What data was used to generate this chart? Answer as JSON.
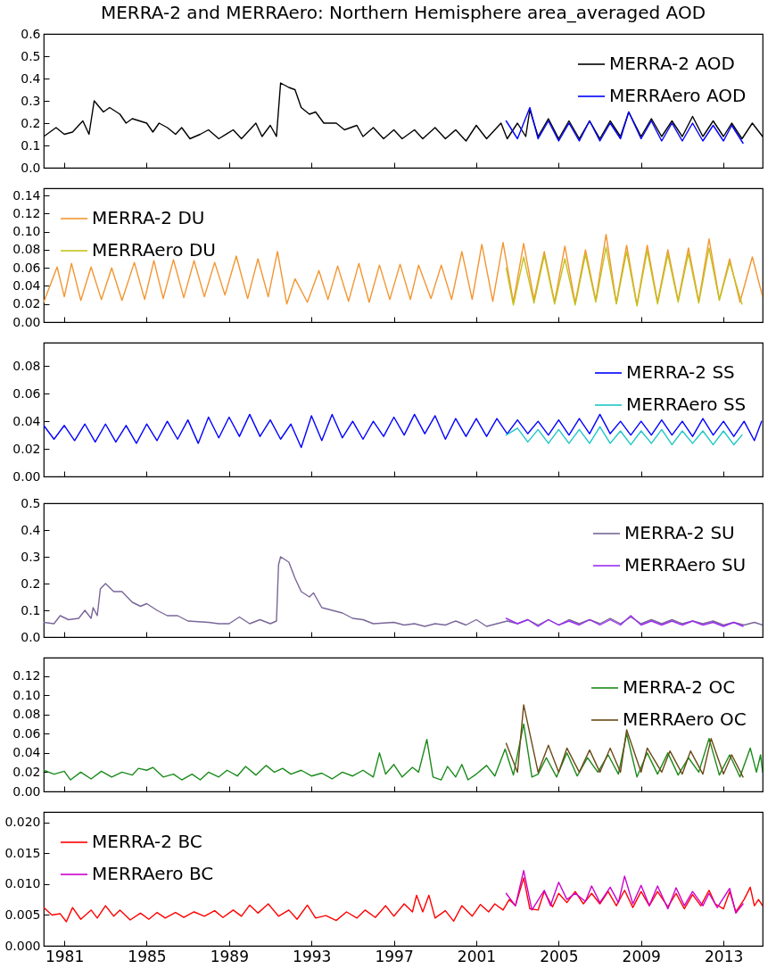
{
  "chart_data": [
    {
      "type": "line",
      "title": "MERRA-2 and MERRAero: Northern Hemisphere area_averaged AOD",
      "xlim": [
        1980,
        2014.9
      ],
      "xticks": [
        1981,
        1985,
        1989,
        1993,
        1997,
        2001,
        2005,
        2009,
        2013
      ],
      "ylim": [
        0,
        0.6
      ],
      "yticks": [
        {
          "value": 0,
          "label": "0.0"
        },
        0.1,
        0.2,
        0.3,
        0.4,
        0.5,
        0.6
      ],
      "tick_labels": "y",
      "legend": "top right",
      "series": [
        {
          "name": "MERRA-2 AOD",
          "color": "#000000",
          "x": [
            1980.0,
            1980.6,
            1981.0,
            1981.4,
            1981.9,
            1982.2,
            1982.45,
            1982.9,
            1983.2,
            1983.7,
            1984.0,
            1984.3,
            1985.0,
            1985.3,
            1985.6,
            1986.0,
            1986.4,
            1986.7,
            1987.1,
            1987.6,
            1988.0,
            1988.5,
            1989.2,
            1989.6,
            1990.3,
            1990.6,
            1991.0,
            1991.3,
            1991.5,
            1991.9,
            1992.2,
            1992.5,
            1992.9,
            1993.2,
            1993.6,
            1994.2,
            1994.6,
            1995.2,
            1995.5,
            1996.0,
            1996.5,
            1997.0,
            1997.4,
            1998.0,
            1998.4,
            1999.0,
            1999.5,
            2000.0,
            2000.5,
            2001.0,
            2001.5,
            2002.2,
            2002.5,
            2003.0,
            2003.4,
            2003.6,
            2004.0,
            2004.5,
            2005.0,
            2005.5,
            2006.0,
            2006.5,
            2007.0,
            2007.5,
            2008.0,
            2008.4,
            2009.0,
            2009.5,
            2010.0,
            2010.5,
            2011.0,
            2011.5,
            2012.0,
            2012.5,
            2013.0,
            2013.4,
            2013.9,
            2014.4,
            2014.9
          ],
          "values": [
            0.14,
            0.18,
            0.15,
            0.16,
            0.21,
            0.15,
            0.3,
            0.25,
            0.27,
            0.24,
            0.2,
            0.22,
            0.2,
            0.16,
            0.2,
            0.18,
            0.15,
            0.18,
            0.13,
            0.15,
            0.17,
            0.13,
            0.17,
            0.13,
            0.2,
            0.14,
            0.19,
            0.14,
            0.38,
            0.36,
            0.35,
            0.27,
            0.24,
            0.25,
            0.2,
            0.2,
            0.17,
            0.19,
            0.14,
            0.18,
            0.13,
            0.17,
            0.13,
            0.17,
            0.13,
            0.18,
            0.13,
            0.17,
            0.12,
            0.19,
            0.13,
            0.2,
            0.13,
            0.2,
            0.14,
            0.26,
            0.14,
            0.22,
            0.13,
            0.21,
            0.13,
            0.21,
            0.13,
            0.21,
            0.14,
            0.25,
            0.14,
            0.22,
            0.14,
            0.21,
            0.14,
            0.23,
            0.14,
            0.21,
            0.14,
            0.2,
            0.13,
            0.2,
            0.14
          ]
        },
        {
          "name": "MERRAero AOD",
          "color": "#0000ff",
          "x": [
            2002.45,
            2003.0,
            2003.6,
            2004.0,
            2004.5,
            2005.0,
            2005.5,
            2006.0,
            2006.5,
            2007.0,
            2007.5,
            2008.0,
            2008.4,
            2009.0,
            2009.5,
            2010.0,
            2010.5,
            2011.0,
            2011.5,
            2012.0,
            2012.5,
            2013.0,
            2013.4,
            2013.95
          ],
          "values": [
            0.21,
            0.13,
            0.27,
            0.13,
            0.21,
            0.12,
            0.2,
            0.12,
            0.21,
            0.12,
            0.2,
            0.13,
            0.25,
            0.13,
            0.21,
            0.12,
            0.2,
            0.12,
            0.2,
            0.12,
            0.19,
            0.12,
            0.19,
            0.11
          ]
        }
      ]
    },
    {
      "type": "line",
      "xlim": [
        1980,
        2014.9
      ],
      "xticks": [
        1981,
        1985,
        1989,
        1993,
        1997,
        2001,
        2005,
        2009,
        2013
      ],
      "ylim": [
        0,
        0.148
      ],
      "yticks": [
        {
          "value": 0,
          "label": "0.00"
        },
        0.02,
        0.04,
        0.06,
        0.08,
        {
          "value": 0.1,
          "label": "0.10"
        },
        0.12,
        0.14
      ],
      "tick_labels": "y",
      "legend": "top left",
      "series": [
        {
          "name": "MERRA-2 DU",
          "color": "#f39530",
          "x": [
            1980.0,
            1980.65,
            1981.0,
            1981.35,
            1981.8,
            1982.3,
            1982.8,
            1983.3,
            1983.8,
            1984.4,
            1984.9,
            1985.35,
            1985.8,
            1986.3,
            1986.8,
            1987.3,
            1987.8,
            1988.3,
            1988.8,
            1989.35,
            1989.9,
            1990.4,
            1990.9,
            1991.35,
            1991.8,
            1992.2,
            1992.8,
            1993.36,
            1993.8,
            1994.27,
            1994.8,
            1995.3,
            1995.8,
            1996.3,
            1996.8,
            1997.3,
            1997.8,
            1998.2,
            1998.8,
            1999.3,
            1999.8,
            2000.3,
            2000.8,
            2001.27,
            2001.8,
            2002.3,
            2002.8,
            2003.3,
            2003.8,
            2004.3,
            2004.8,
            2005.3,
            2005.8,
            2006.3,
            2006.8,
            2007.3,
            2007.8,
            2008.3,
            2008.8,
            2009.3,
            2009.8,
            2010.3,
            2010.8,
            2011.3,
            2011.8,
            2012.3,
            2012.8,
            2013.3,
            2013.8,
            2014.4,
            2014.9
          ],
          "values": [
            0.022,
            0.061,
            0.028,
            0.065,
            0.024,
            0.061,
            0.025,
            0.06,
            0.024,
            0.066,
            0.025,
            0.068,
            0.026,
            0.069,
            0.027,
            0.068,
            0.028,
            0.066,
            0.03,
            0.073,
            0.026,
            0.07,
            0.028,
            0.078,
            0.02,
            0.048,
            0.022,
            0.057,
            0.025,
            0.062,
            0.023,
            0.065,
            0.022,
            0.063,
            0.025,
            0.064,
            0.025,
            0.063,
            0.026,
            0.063,
            0.025,
            0.078,
            0.025,
            0.086,
            0.023,
            0.088,
            0.022,
            0.087,
            0.025,
            0.078,
            0.022,
            0.084,
            0.021,
            0.08,
            0.024,
            0.097,
            0.021,
            0.085,
            0.019,
            0.085,
            0.022,
            0.08,
            0.024,
            0.082,
            0.023,
            0.092,
            0.025,
            0.07,
            0.022,
            0.072,
            0.028
          ]
        },
        {
          "name": "MERRAero DU",
          "color": "#c2c21e",
          "x": [
            2002.45,
            2002.8,
            2003.3,
            2003.8,
            2004.3,
            2004.8,
            2005.3,
            2005.8,
            2006.3,
            2006.8,
            2007.3,
            2007.8,
            2008.3,
            2008.8,
            2009.3,
            2009.8,
            2010.3,
            2010.8,
            2011.3,
            2011.8,
            2012.3,
            2012.8,
            2013.3,
            2013.9
          ],
          "values": [
            0.06,
            0.019,
            0.072,
            0.021,
            0.074,
            0.02,
            0.07,
            0.019,
            0.075,
            0.022,
            0.083,
            0.02,
            0.078,
            0.018,
            0.079,
            0.02,
            0.075,
            0.022,
            0.076,
            0.021,
            0.082,
            0.024,
            0.066,
            0.02
          ]
        }
      ]
    },
    {
      "type": "line",
      "xlim": [
        1980,
        2014.9
      ],
      "xticks": [
        1981,
        1985,
        1989,
        1993,
        1997,
        2001,
        2005,
        2009,
        2013
      ],
      "ylim": [
        0,
        0.097
      ],
      "yticks": [
        {
          "value": 0,
          "label": "0.00"
        },
        0.02,
        0.04,
        0.06,
        0.08
      ],
      "tick_labels": "y",
      "legend": "top right",
      "series": [
        {
          "name": "MERRA-2 SS",
          "color": "#0000ff",
          "x": [
            1980.0,
            1980.5,
            1981.0,
            1981.5,
            1982.0,
            1982.5,
            1983.0,
            1983.5,
            1984.0,
            1984.5,
            1985.0,
            1985.5,
            1986.0,
            1986.5,
            1987.0,
            1987.5,
            1988.0,
            1988.5,
            1989.0,
            1989.5,
            1990.0,
            1990.5,
            1991.0,
            1991.5,
            1992.0,
            1992.5,
            1993.0,
            1993.5,
            1994.0,
            1994.5,
            1995.0,
            1995.5,
            1996.0,
            1996.5,
            1997.0,
            1997.5,
            1998.0,
            1998.5,
            1999.0,
            1999.5,
            2000.0,
            2000.5,
            2001.0,
            2001.5,
            2002.0,
            2002.5,
            2003.0,
            2003.5,
            2004.0,
            2004.5,
            2005.0,
            2005.5,
            2006.0,
            2006.5,
            2007.0,
            2007.5,
            2008.0,
            2008.5,
            2009.0,
            2009.5,
            2010.0,
            2010.5,
            2011.0,
            2011.5,
            2012.0,
            2012.5,
            2013.0,
            2013.5,
            2014.0,
            2014.5,
            2014.85
          ],
          "values": [
            0.037,
            0.027,
            0.037,
            0.026,
            0.038,
            0.025,
            0.038,
            0.025,
            0.037,
            0.024,
            0.038,
            0.026,
            0.04,
            0.027,
            0.041,
            0.024,
            0.043,
            0.028,
            0.043,
            0.029,
            0.045,
            0.029,
            0.041,
            0.027,
            0.038,
            0.021,
            0.044,
            0.026,
            0.045,
            0.028,
            0.04,
            0.027,
            0.04,
            0.029,
            0.043,
            0.03,
            0.045,
            0.031,
            0.044,
            0.027,
            0.042,
            0.029,
            0.042,
            0.029,
            0.042,
            0.031,
            0.041,
            0.031,
            0.04,
            0.03,
            0.041,
            0.03,
            0.042,
            0.031,
            0.045,
            0.031,
            0.04,
            0.03,
            0.04,
            0.03,
            0.041,
            0.03,
            0.04,
            0.029,
            0.042,
            0.03,
            0.04,
            0.029,
            0.04,
            0.026,
            0.04
          ]
        },
        {
          "name": "MERRAero SS",
          "color": "#1fc6c6",
          "x": [
            2002.45,
            2003.0,
            2003.5,
            2004.0,
            2004.5,
            2005.0,
            2005.5,
            2006.0,
            2006.5,
            2007.0,
            2007.5,
            2008.0,
            2008.5,
            2009.0,
            2009.5,
            2010.0,
            2010.5,
            2011.0,
            2011.5,
            2012.0,
            2012.5,
            2013.0,
            2013.5,
            2013.9
          ],
          "values": [
            0.03,
            0.035,
            0.025,
            0.034,
            0.024,
            0.034,
            0.024,
            0.034,
            0.024,
            0.036,
            0.024,
            0.033,
            0.023,
            0.033,
            0.024,
            0.034,
            0.023,
            0.033,
            0.024,
            0.033,
            0.023,
            0.033,
            0.023,
            0.03
          ]
        }
      ]
    },
    {
      "type": "line",
      "xlim": [
        1980,
        2014.9
      ],
      "xticks": [
        1981,
        1985,
        1989,
        1993,
        1997,
        2001,
        2005,
        2009,
        2013
      ],
      "ylim": [
        0,
        0.5
      ],
      "yticks": [
        {
          "value": 0,
          "label": "0.0"
        },
        0.1,
        0.2,
        0.3,
        0.4,
        0.5
      ],
      "tick_labels": "y",
      "legend": "top right",
      "series": [
        {
          "name": "MERRA-2 SU",
          "color": "#7a6699",
          "x": [
            1980.0,
            1980.5,
            1980.8,
            1981.2,
            1981.7,
            1982.0,
            1982.3,
            1982.4,
            1982.6,
            1982.75,
            1983.0,
            1983.4,
            1983.8,
            1984.3,
            1984.7,
            1985.0,
            1985.5,
            1986.0,
            1986.5,
            1987.0,
            1988.0,
            1988.5,
            1989.0,
            1989.5,
            1990.0,
            1990.5,
            1991.0,
            1991.3,
            1991.4,
            1991.5,
            1991.9,
            1992.2,
            1992.5,
            1992.9,
            1993.1,
            1993.5,
            1994.0,
            1994.5,
            1995.0,
            1995.5,
            1996.0,
            1997.0,
            1997.5,
            1998.0,
            1998.5,
            1999.0,
            1999.5,
            2000.0,
            2000.5,
            2001.0,
            2001.5,
            2002.5,
            2003.0,
            2003.5,
            2004.0,
            2004.5,
            2005.0,
            2005.5,
            2006.0,
            2006.5,
            2007.0,
            2007.5,
            2008.0,
            2008.5,
            2009.0,
            2009.5,
            2010.0,
            2010.5,
            2011.0,
            2011.5,
            2012.0,
            2012.5,
            2013.0,
            2013.5,
            2014.0,
            2014.5,
            2014.9
          ],
          "values": [
            0.055,
            0.05,
            0.08,
            0.065,
            0.07,
            0.1,
            0.07,
            0.11,
            0.08,
            0.18,
            0.2,
            0.17,
            0.17,
            0.13,
            0.115,
            0.125,
            0.1,
            0.08,
            0.08,
            0.06,
            0.055,
            0.05,
            0.05,
            0.075,
            0.05,
            0.065,
            0.05,
            0.06,
            0.27,
            0.3,
            0.28,
            0.22,
            0.17,
            0.15,
            0.165,
            0.11,
            0.1,
            0.09,
            0.07,
            0.065,
            0.05,
            0.055,
            0.045,
            0.05,
            0.04,
            0.05,
            0.045,
            0.06,
            0.045,
            0.065,
            0.04,
            0.06,
            0.05,
            0.065,
            0.045,
            0.065,
            0.045,
            0.065,
            0.05,
            0.065,
            0.05,
            0.07,
            0.05,
            0.075,
            0.05,
            0.065,
            0.05,
            0.065,
            0.05,
            0.06,
            0.05,
            0.06,
            0.045,
            0.055,
            0.045,
            0.055,
            0.045
          ]
        },
        {
          "name": "MERRAero SU",
          "color": "#9a2cf2",
          "x": [
            2002.45,
            2003.0,
            2003.5,
            2004.0,
            2004.5,
            2005.0,
            2005.5,
            2006.0,
            2006.5,
            2007.0,
            2007.5,
            2008.0,
            2008.5,
            2009.0,
            2009.5,
            2010.0,
            2010.5,
            2011.0,
            2011.5,
            2012.0,
            2012.5,
            2013.0,
            2013.5,
            2013.95
          ],
          "values": [
            0.07,
            0.05,
            0.065,
            0.04,
            0.065,
            0.045,
            0.06,
            0.045,
            0.065,
            0.045,
            0.065,
            0.045,
            0.08,
            0.045,
            0.06,
            0.045,
            0.06,
            0.045,
            0.06,
            0.045,
            0.055,
            0.04,
            0.055,
            0.04
          ]
        }
      ]
    },
    {
      "type": "line",
      "xlim": [
        1980,
        2014.9
      ],
      "xticks": [
        1981,
        1985,
        1989,
        1993,
        1997,
        2001,
        2005,
        2009,
        2013
      ],
      "ylim": [
        0,
        0.139
      ],
      "yticks": [
        {
          "value": 0,
          "label": "0.00"
        },
        0.02,
        0.04,
        0.06,
        0.08,
        {
          "value": 0.1,
          "label": "0.10"
        },
        0.12
      ],
      "tick_labels": "y",
      "legend": "top right",
      "series": [
        {
          "name": "MERRA-2 OC",
          "color": "#1a8a1a",
          "x": [
            1980.0,
            1980.5,
            1981.0,
            1981.3,
            1981.8,
            1982.3,
            1982.8,
            1983.3,
            1983.8,
            1984.3,
            1984.6,
            1985.0,
            1985.3,
            1985.8,
            1986.3,
            1986.7,
            1987.2,
            1987.6,
            1988.0,
            1988.5,
            1988.9,
            1989.4,
            1989.8,
            1990.3,
            1990.8,
            1991.2,
            1991.6,
            1992.0,
            1992.5,
            1993.0,
            1993.5,
            1994.0,
            1994.5,
            1995.0,
            1995.5,
            1996.0,
            1996.3,
            1996.6,
            1997.0,
            1997.4,
            1997.9,
            1998.2,
            1998.6,
            1998.9,
            1999.3,
            1999.6,
            2000.0,
            2000.3,
            2000.6,
            2001.0,
            2001.5,
            2001.9,
            2002.4,
            2002.8,
            2003.3,
            2003.7,
            2004.0,
            2004.4,
            2004.9,
            2005.4,
            2005.9,
            2006.4,
            2006.9,
            2007.4,
            2007.9,
            2008.3,
            2008.8,
            2009.3,
            2009.8,
            2010.3,
            2010.8,
            2011.3,
            2011.8,
            2012.3,
            2012.8,
            2013.3,
            2013.8,
            2014.3,
            2014.6,
            2014.8,
            2014.9
          ],
          "values": [
            0.022,
            0.018,
            0.021,
            0.012,
            0.02,
            0.013,
            0.021,
            0.015,
            0.02,
            0.017,
            0.024,
            0.022,
            0.025,
            0.015,
            0.018,
            0.012,
            0.018,
            0.012,
            0.02,
            0.015,
            0.022,
            0.016,
            0.026,
            0.017,
            0.027,
            0.02,
            0.024,
            0.018,
            0.022,
            0.016,
            0.019,
            0.013,
            0.02,
            0.016,
            0.022,
            0.015,
            0.04,
            0.018,
            0.028,
            0.015,
            0.025,
            0.02,
            0.054,
            0.015,
            0.012,
            0.026,
            0.015,
            0.028,
            0.012,
            0.018,
            0.027,
            0.016,
            0.044,
            0.017,
            0.07,
            0.015,
            0.018,
            0.035,
            0.015,
            0.04,
            0.016,
            0.035,
            0.02,
            0.038,
            0.018,
            0.06,
            0.015,
            0.04,
            0.018,
            0.04,
            0.017,
            0.035,
            0.02,
            0.055,
            0.017,
            0.038,
            0.015,
            0.045,
            0.02,
            0.038,
            0.02
          ]
        },
        {
          "name": "MERRAero OC",
          "color": "#6b4a17",
          "x": [
            2002.45,
            2003.0,
            2003.3,
            2004.0,
            2004.5,
            2005.0,
            2005.4,
            2006.0,
            2006.5,
            2007.0,
            2007.5,
            2008.0,
            2008.3,
            2009.0,
            2009.3,
            2010.0,
            2010.4,
            2011.0,
            2011.4,
            2012.0,
            2012.4,
            2013.0,
            2013.4,
            2013.95
          ],
          "values": [
            0.05,
            0.02,
            0.09,
            0.02,
            0.048,
            0.02,
            0.045,
            0.02,
            0.043,
            0.02,
            0.045,
            0.02,
            0.064,
            0.02,
            0.045,
            0.02,
            0.042,
            0.018,
            0.042,
            0.018,
            0.055,
            0.018,
            0.038,
            0.015
          ]
        }
      ]
    },
    {
      "type": "line",
      "xlim": [
        1980,
        2014.9
      ],
      "xticks": [
        1981,
        1985,
        1989,
        1993,
        1997,
        2001,
        2005,
        2009,
        2013
      ],
      "ylim": [
        0,
        0.0217
      ],
      "yticks": [
        {
          "value": 0,
          "label": "0.000"
        },
        0.005,
        {
          "value": 0.01,
          "label": "0.010"
        },
        0.015,
        {
          "value": 0.02,
          "label": "0.020"
        }
      ],
      "legend": "top left",
      "series": [
        {
          "name": "MERRA-2 BC",
          "color": "#ff0000",
          "x": [
            1980.0,
            1980.4,
            1980.8,
            1981.1,
            1981.4,
            1981.8,
            1982.3,
            1982.6,
            1983.0,
            1983.4,
            1983.7,
            1984.2,
            1984.7,
            1985.1,
            1985.5,
            1985.9,
            1986.4,
            1986.8,
            1987.3,
            1987.8,
            1988.3,
            1988.7,
            1989.2,
            1989.6,
            1990.0,
            1990.4,
            1990.9,
            1991.4,
            1991.9,
            1992.3,
            1992.8,
            1993.2,
            1993.7,
            1994.2,
            1994.7,
            1995.2,
            1995.6,
            1996.1,
            1996.6,
            1997.0,
            1997.5,
            1997.9,
            1998.1,
            1998.4,
            1998.7,
            1999.0,
            1999.5,
            1999.9,
            2000.3,
            2000.8,
            2001.2,
            2001.6,
            2001.9,
            2002.3,
            2002.6,
            2002.9,
            2003.3,
            2003.6,
            2004.0,
            2004.3,
            2004.7,
            2005.0,
            2005.4,
            2005.8,
            2006.2,
            2006.6,
            2007.0,
            2007.4,
            2007.8,
            2008.2,
            2008.6,
            2009.0,
            2009.4,
            2009.8,
            2010.3,
            2010.7,
            2011.1,
            2011.5,
            2011.9,
            2012.3,
            2012.6,
            2013.0,
            2013.3,
            2013.6,
            2014.0,
            2014.3,
            2014.5,
            2014.7,
            2014.9
          ],
          "values": [
            0.0062,
            0.005,
            0.0052,
            0.0039,
            0.0062,
            0.0043,
            0.0058,
            0.0045,
            0.0065,
            0.0048,
            0.0058,
            0.0042,
            0.0053,
            0.0043,
            0.0054,
            0.0045,
            0.0054,
            0.0046,
            0.0055,
            0.0048,
            0.0057,
            0.0046,
            0.0058,
            0.0048,
            0.0066,
            0.0053,
            0.0068,
            0.0048,
            0.0058,
            0.0043,
            0.0066,
            0.0045,
            0.0049,
            0.0041,
            0.0055,
            0.0045,
            0.0058,
            0.0046,
            0.0065,
            0.0048,
            0.0068,
            0.0055,
            0.0082,
            0.0055,
            0.0082,
            0.0045,
            0.0057,
            0.004,
            0.0065,
            0.0048,
            0.0067,
            0.0055,
            0.0068,
            0.0058,
            0.0075,
            0.0065,
            0.011,
            0.006,
            0.0058,
            0.0088,
            0.0063,
            0.0085,
            0.007,
            0.0088,
            0.0068,
            0.0085,
            0.0068,
            0.0088,
            0.0065,
            0.009,
            0.0062,
            0.0088,
            0.0065,
            0.0088,
            0.0063,
            0.0085,
            0.006,
            0.0083,
            0.0065,
            0.009,
            0.0068,
            0.006,
            0.0088,
            0.0055,
            0.0075,
            0.0095,
            0.0065,
            0.0075,
            0.0065
          ]
        },
        {
          "name": "MERRAero BC",
          "color": "#cc00cc",
          "x": [
            2002.45,
            2002.9,
            2003.3,
            2003.7,
            2004.3,
            2004.6,
            2005.0,
            2005.4,
            2005.8,
            2006.3,
            2006.6,
            2007.0,
            2007.5,
            2007.9,
            2008.2,
            2008.6,
            2009.0,
            2009.4,
            2009.8,
            2010.3,
            2010.7,
            2011.1,
            2011.5,
            2012.0,
            2012.3,
            2012.7,
            2013.3,
            2013.6,
            2013.95
          ],
          "values": [
            0.0085,
            0.0065,
            0.0122,
            0.0058,
            0.009,
            0.0065,
            0.0103,
            0.0075,
            0.0085,
            0.0072,
            0.0097,
            0.007,
            0.0095,
            0.007,
            0.0113,
            0.0068,
            0.0098,
            0.0065,
            0.0097,
            0.006,
            0.0094,
            0.0065,
            0.0088,
            0.0065,
            0.0085,
            0.0062,
            0.0093,
            0.0053,
            0.0068
          ]
        }
      ]
    }
  ]
}
